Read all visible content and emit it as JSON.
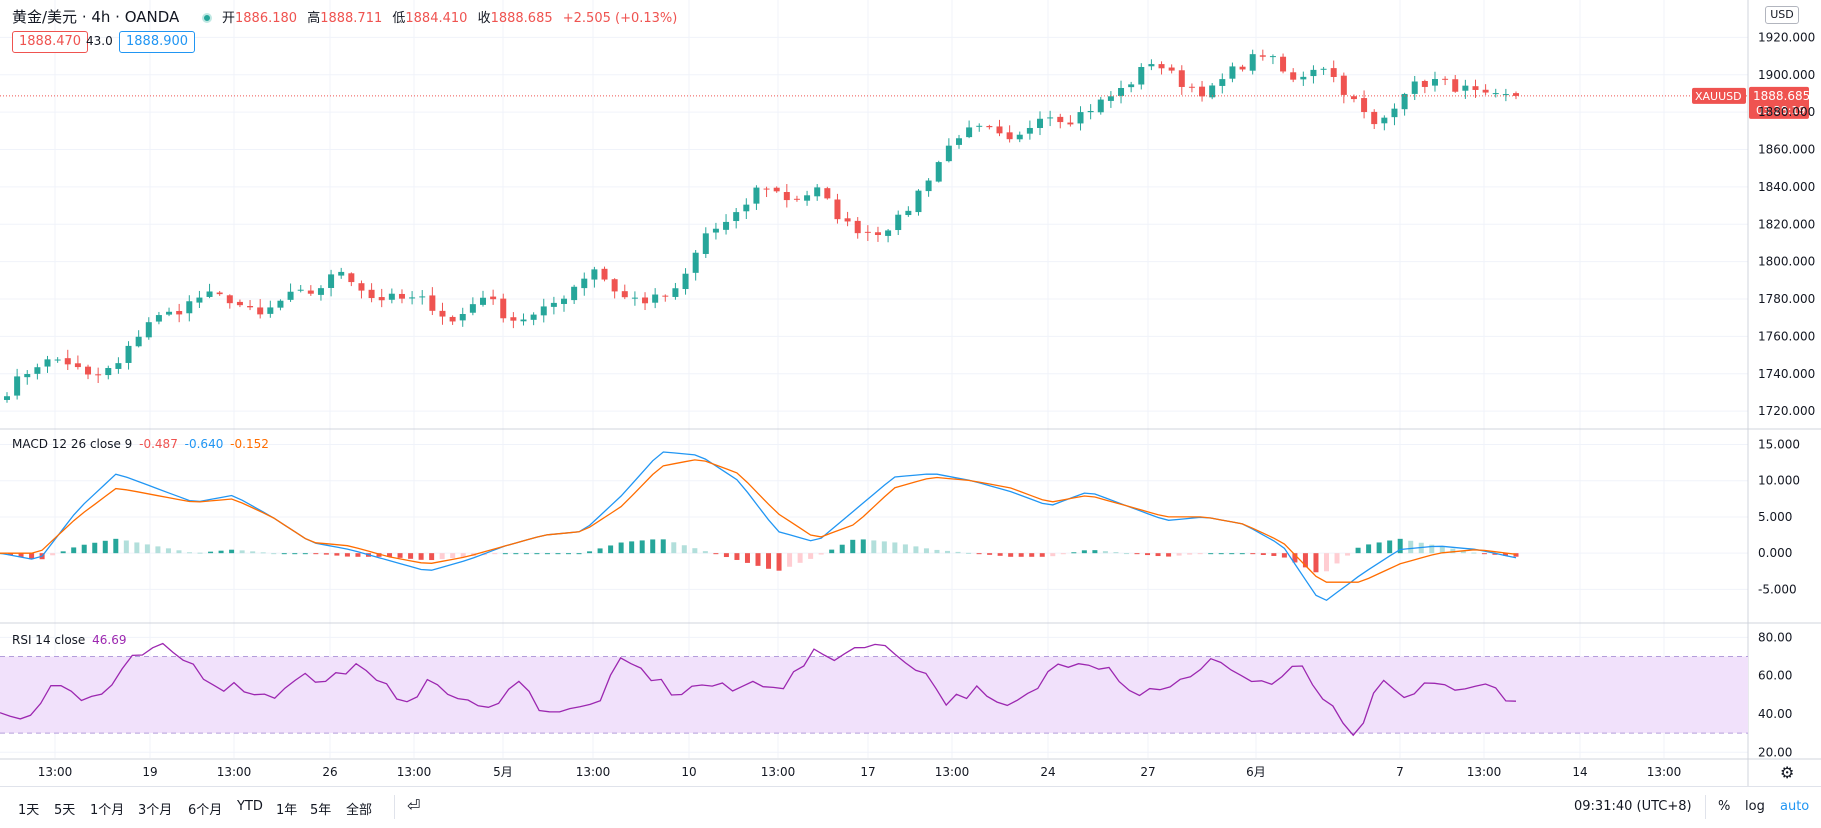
{
  "header": {
    "symbol": "黄金/美元 · 4h · OANDA",
    "open_label": "开",
    "open": "1886.180",
    "high_label": "高",
    "high": "1888.711",
    "low_label": "低",
    "low": "1884.410",
    "close_label": "收",
    "close": "1888.685",
    "change": "+2.505 (+0.13%)",
    "bid": "1888.470",
    "spread": "43.0",
    "ask": "1888.900"
  },
  "currency_label": "USD",
  "price_tag": {
    "symbol": "XAUUSD",
    "price": "1888.685",
    "countdown": "03:28:19"
  },
  "macd_title": {
    "name": "MACD 12 26 close 9",
    "hist": "-0.487",
    "macd": "-0.640",
    "signal": "-0.152"
  },
  "rsi_title": {
    "name": "RSI 14 close",
    "value": "46.69"
  },
  "colors": {
    "up": "#26a69a",
    "down": "#ef5350",
    "macd": "#2196f3",
    "signal": "#ff6d00",
    "rsi": "#9c27b0",
    "rsi_band": "#f1e1fb"
  },
  "bottom": {
    "ranges": [
      "1天",
      "5天",
      "1个月",
      "3个月",
      "6个月",
      "YTD",
      "1年",
      "5年",
      "全部"
    ],
    "time": "09:31:40 (UTC+8)",
    "pct": "%",
    "log": "log",
    "auto": "auto"
  },
  "chart_data": [
    {
      "type": "candlestick",
      "title": "黄金/美元 · 4h · OANDA",
      "y_ticks": [
        1720,
        1740,
        1760,
        1780,
        1800,
        1820,
        1840,
        1860,
        1880,
        1900,
        1920
      ],
      "ylim": [
        1711,
        1940
      ],
      "x_ticks": [
        "13:00",
        "19",
        "13:00",
        "26",
        "13:00",
        "5月",
        "13:00",
        "10",
        "13:00",
        "17",
        "13:00",
        "24",
        "27",
        "6月",
        "7",
        "13:00",
        "14",
        "13:00"
      ],
      "anchors_close": [
        1731,
        1745,
        1748,
        1737,
        1745,
        1768,
        1773,
        1782,
        1780,
        1770,
        1781,
        1784,
        1796,
        1781,
        1780,
        1779,
        1767,
        1783,
        1769,
        1771,
        1783,
        1797,
        1781,
        1779,
        1784,
        1815,
        1822,
        1842,
        1833,
        1838,
        1820,
        1815,
        1823,
        1846,
        1868,
        1871,
        1862,
        1880,
        1876,
        1884,
        1893,
        1908,
        1896,
        1890,
        1904,
        1912,
        1896,
        1907,
        1889,
        1871,
        1892,
        1897,
        1893,
        1887,
        1888.685
      ],
      "last": 1888.685
    },
    {
      "type": "line",
      "title": "MACD 12 26 close 9",
      "series": [
        {
          "name": "MACD",
          "anchors": [
            0,
            -1,
            6,
            11,
            9,
            7,
            8,
            5,
            1.5,
            0.5,
            -1,
            -2.5,
            -1,
            1,
            2.5,
            3,
            8,
            14,
            13.5,
            10,
            3,
            1.5,
            6,
            10.5,
            11,
            10,
            8.5,
            6.5,
            8.5,
            6.5,
            4.5,
            5,
            4,
            1,
            -7,
            -3,
            0.5,
            1,
            0.5,
            -0.64
          ]
        },
        {
          "name": "Signal",
          "anchors": [
            0,
            0,
            5,
            9,
            8,
            7,
            7.5,
            5,
            1.5,
            1,
            -0.5,
            -1.5,
            -0.5,
            1,
            2.5,
            3,
            6.5,
            12,
            13,
            11,
            5.5,
            2,
            4,
            9,
            10.5,
            10,
            9,
            7,
            8,
            6.5,
            5,
            5,
            4,
            1.5,
            -4,
            -4,
            -1.5,
            0,
            0.5,
            -0.152
          ]
        }
      ],
      "histogram_last": -0.487,
      "y_ticks": [
        -5,
        0,
        5,
        10,
        15
      ],
      "ylim": [
        -9.5,
        17
      ]
    },
    {
      "type": "line",
      "title": "RSI 14 close",
      "series": [
        {
          "name": "RSI",
          "anchors": [
            40,
            38,
            58,
            47,
            52,
            70,
            74,
            67,
            55,
            54,
            48,
            61,
            56,
            66,
            55,
            48,
            57,
            47,
            41,
            59,
            43,
            41,
            45,
            68,
            60,
            50,
            56,
            52,
            57,
            55,
            71,
            70,
            78,
            72,
            64,
            46,
            53,
            42,
            49,
            66,
            69,
            64,
            50,
            55,
            58,
            70,
            58,
            56,
            65,
            46,
            26,
            56,
            47,
            58,
            51,
            55,
            46.69
          ]
        }
      ],
      "band": [
        30,
        70
      ],
      "y_ticks": [
        20,
        40,
        60,
        80
      ],
      "ylim": [
        17,
        87
      ]
    }
  ]
}
